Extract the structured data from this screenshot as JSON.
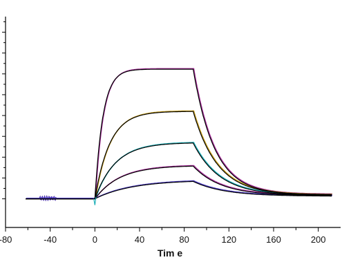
{
  "chart_data": {
    "type": "line",
    "title": "",
    "xlabel": "Tim e",
    "ylabel": "",
    "xlim": [
      -80,
      220
    ],
    "ylim": [
      -0.055,
      0.35
    ],
    "x_ticks": [
      "-80",
      "-40",
      "0",
      "40",
      "80",
      "120",
      "160",
      "200"
    ],
    "y_ticks": [
      0,
      0.04,
      0.08,
      0.12,
      0.16,
      0.2,
      0.24,
      0.28,
      0.32
    ],
    "grid": false,
    "legend": "none",
    "baseline_start": -62,
    "association_start": 0,
    "dissociation_start": 88,
    "end": 212,
    "fit_color": "#000000",
    "series": [
      {
        "color": "#a8329c",
        "plateau": 0.249,
        "ka": 0.14,
        "kd": 0.052,
        "tail": 0.008
      },
      {
        "color": "#c8a020",
        "plateau": 0.168,
        "ka": 0.075,
        "kd": 0.046,
        "tail": 0.007
      },
      {
        "color": "#21b0b8",
        "plateau": 0.108,
        "ka": 0.055,
        "kd": 0.042,
        "tail": 0.006
      },
      {
        "color": "#a8329c",
        "plateau": 0.064,
        "ka": 0.045,
        "kd": 0.04,
        "tail": 0.006
      },
      {
        "color": "#4a3ac0",
        "plateau": 0.036,
        "ka": 0.03,
        "kd": 0.036,
        "tail": 0.005
      }
    ]
  }
}
